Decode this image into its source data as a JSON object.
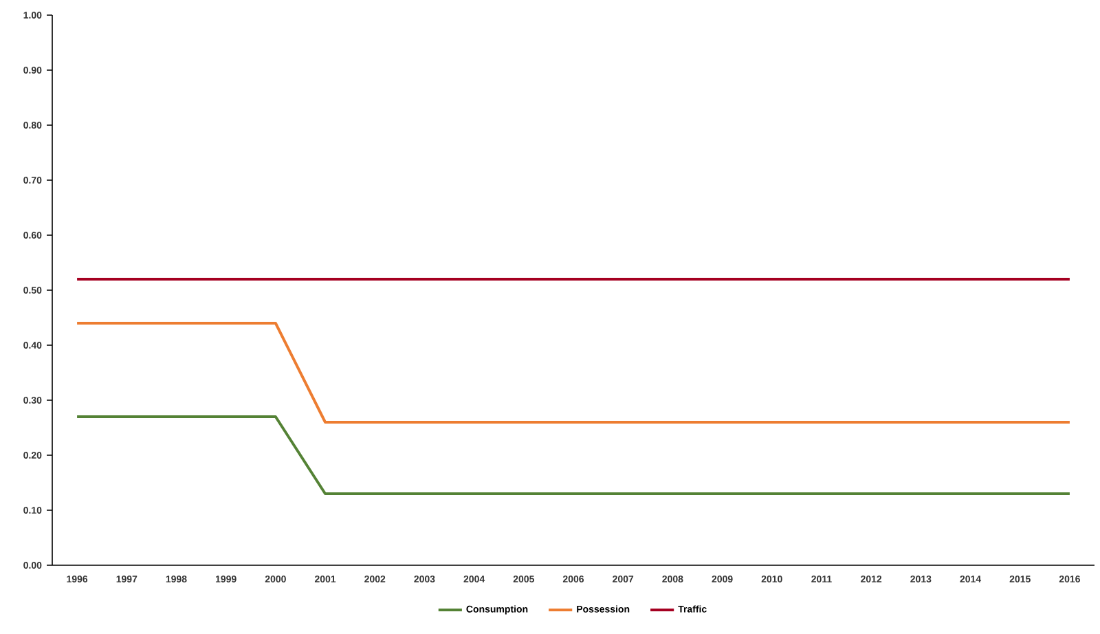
{
  "chart_data": {
    "type": "line",
    "categories": [
      "1996",
      "1997",
      "1998",
      "1999",
      "2000",
      "2001",
      "2002",
      "2003",
      "2004",
      "2005",
      "2006",
      "2007",
      "2008",
      "2009",
      "2010",
      "2011",
      "2012",
      "2013",
      "2014",
      "2015",
      "2016"
    ],
    "series": [
      {
        "name": "Consumption",
        "color": "#548235",
        "values": [
          0.27,
          0.27,
          0.27,
          0.27,
          0.27,
          0.13,
          0.13,
          0.13,
          0.13,
          0.13,
          0.13,
          0.13,
          0.13,
          0.13,
          0.13,
          0.13,
          0.13,
          0.13,
          0.13,
          0.13,
          0.13
        ]
      },
      {
        "name": "Possession",
        "color": "#ed7d31",
        "values": [
          0.44,
          0.44,
          0.44,
          0.44,
          0.44,
          0.26,
          0.26,
          0.26,
          0.26,
          0.26,
          0.26,
          0.26,
          0.26,
          0.26,
          0.26,
          0.26,
          0.26,
          0.26,
          0.26,
          0.26,
          0.26
        ]
      },
      {
        "name": "Traffic",
        "color": "#a50021",
        "values": [
          0.52,
          0.52,
          0.52,
          0.52,
          0.52,
          0.52,
          0.52,
          0.52,
          0.52,
          0.52,
          0.52,
          0.52,
          0.52,
          0.52,
          0.52,
          0.52,
          0.52,
          0.52,
          0.52,
          0.52,
          0.52
        ]
      }
    ],
    "ylim": [
      0,
      1
    ],
    "yticks": [
      {
        "value": 0,
        "label": "0.00"
      },
      {
        "value": 0.1,
        "label": "0.10"
      },
      {
        "value": 0.2,
        "label": "0.20"
      },
      {
        "value": 0.3,
        "label": "0.30"
      },
      {
        "value": 0.4,
        "label": "0.40"
      },
      {
        "value": 0.5,
        "label": "0.50"
      },
      {
        "value": 0.6,
        "label": "0.60"
      },
      {
        "value": 0.7,
        "label": "0.70"
      },
      {
        "value": 0.8,
        "label": "0.80"
      },
      {
        "value": 0.9,
        "label": "0.90"
      },
      {
        "value": 1,
        "label": "1.00"
      }
    ],
    "legend": "bottom",
    "marker": "none",
    "line_style": "solid",
    "grid": false
  }
}
